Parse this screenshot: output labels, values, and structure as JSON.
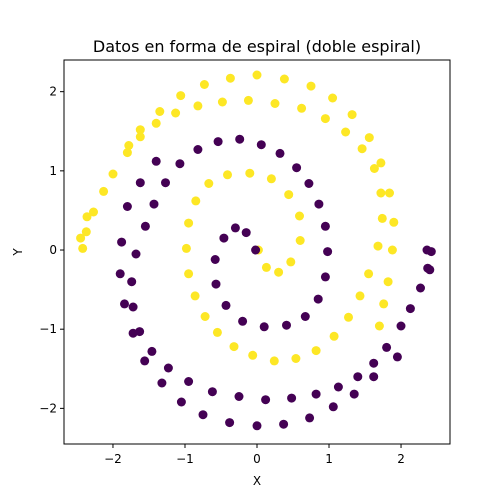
{
  "chart_data": {
    "type": "scatter",
    "title": "Datos en forma de espiral (doble espiral)",
    "xlabel": "X",
    "ylabel": "Y",
    "xlim": [
      -2.68,
      2.68
    ],
    "ylim": [
      -2.45,
      2.4
    ],
    "xticks": [
      -2,
      -1,
      0,
      1,
      2
    ],
    "yticks": [
      -2,
      -1,
      0,
      1,
      2
    ],
    "xtick_labels": [
      "−2",
      "−1",
      "0",
      "1",
      "2"
    ],
    "ytick_labels": [
      "−2",
      "−1",
      "0",
      "1",
      "2"
    ],
    "grid": false,
    "legend": false,
    "series": [
      {
        "color": "#fde725",
        "x": [
          0.02,
          0.13,
          0.3,
          0.47,
          0.6,
          0.59,
          0.44,
          0.2,
          -0.1,
          -0.41,
          -0.67,
          -0.85,
          -0.95,
          -0.98,
          -0.95,
          -0.86,
          -0.72,
          -0.55,
          -0.32,
          -0.06,
          0.24,
          0.54,
          0.82,
          1.07,
          1.27,
          1.43,
          1.55,
          1.68,
          1.74,
          1.72,
          1.63,
          1.46,
          1.23,
          0.95,
          0.62,
          0.25,
          -0.12,
          -0.48,
          -0.82,
          -1.13,
          -1.4,
          -1.62,
          -1.8,
          -2.0,
          -2.13,
          -2.27,
          -2.37,
          -2.42,
          -2.45,
          -2.36,
          -1.78,
          -1.62,
          -1.35,
          -1.06,
          -0.73,
          -0.37,
          0.0,
          0.38,
          0.75,
          1.05,
          1.32,
          1.56,
          1.72,
          1.84,
          1.9,
          1.88,
          1.82,
          1.76,
          1.7
        ],
        "y": [
          0.0,
          -0.22,
          -0.28,
          -0.15,
          0.12,
          0.43,
          0.7,
          0.9,
          0.97,
          0.95,
          0.84,
          0.62,
          0.34,
          0.02,
          -0.3,
          -0.58,
          -0.84,
          -1.04,
          -1.22,
          -1.33,
          -1.4,
          -1.37,
          -1.27,
          -1.09,
          -0.85,
          -0.58,
          -0.3,
          0.05,
          0.4,
          0.72,
          1.03,
          1.28,
          1.49,
          1.66,
          1.79,
          1.85,
          1.89,
          1.87,
          1.82,
          1.73,
          1.6,
          1.43,
          1.23,
          0.96,
          0.74,
          0.48,
          0.23,
          0.02,
          0.15,
          0.42,
          1.32,
          1.52,
          1.75,
          1.95,
          2.09,
          2.17,
          2.21,
          2.16,
          2.07,
          1.92,
          1.71,
          1.42,
          1.1,
          0.72,
          0.35,
          0.0,
          -0.4,
          -0.68,
          -0.96
        ]
      },
      {
        "color": "#440154",
        "x": [
          -0.02,
          -0.15,
          -0.3,
          -0.46,
          -0.58,
          -0.57,
          -0.43,
          -0.2,
          0.1,
          0.41,
          0.67,
          0.85,
          0.95,
          0.98,
          0.95,
          0.86,
          0.72,
          0.55,
          0.32,
          0.06,
          -0.24,
          -0.54,
          -0.82,
          -1.07,
          -1.27,
          -1.43,
          -1.55,
          -1.68,
          -1.74,
          -1.72,
          -1.63,
          -1.46,
          -1.23,
          -0.95,
          -0.62,
          -0.25,
          0.12,
          0.48,
          0.82,
          1.13,
          1.4,
          1.62,
          1.8,
          2.0,
          2.13,
          2.27,
          2.37,
          2.42,
          2.4,
          2.36,
          1.95,
          1.62,
          1.35,
          1.06,
          0.73,
          0.37,
          0.0,
          -0.38,
          -0.75,
          -1.05,
          -1.32,
          -1.56,
          -1.72,
          -1.84,
          -1.9,
          -1.88,
          -1.8,
          -1.62,
          -1.4
        ],
        "y": [
          0.0,
          0.22,
          0.28,
          0.15,
          -0.12,
          -0.43,
          -0.7,
          -0.9,
          -0.97,
          -0.95,
          -0.84,
          -0.62,
          -0.34,
          -0.02,
          0.3,
          0.58,
          0.84,
          1.04,
          1.22,
          1.33,
          1.4,
          1.37,
          1.27,
          1.09,
          0.85,
          0.58,
          0.3,
          -0.05,
          -0.4,
          -0.72,
          -1.03,
          -1.28,
          -1.49,
          -1.66,
          -1.79,
          -1.85,
          -1.89,
          -1.87,
          -1.82,
          -1.73,
          -1.6,
          -1.43,
          -1.23,
          -0.96,
          -0.74,
          -0.48,
          -0.23,
          -0.02,
          -0.25,
          0.0,
          -1.35,
          -1.6,
          -1.82,
          -1.98,
          -2.12,
          -2.2,
          -2.22,
          -2.18,
          -2.08,
          -1.92,
          -1.68,
          -1.4,
          -1.05,
          -0.68,
          -0.3,
          0.1,
          0.55,
          0.85,
          1.12
        ]
      }
    ]
  }
}
